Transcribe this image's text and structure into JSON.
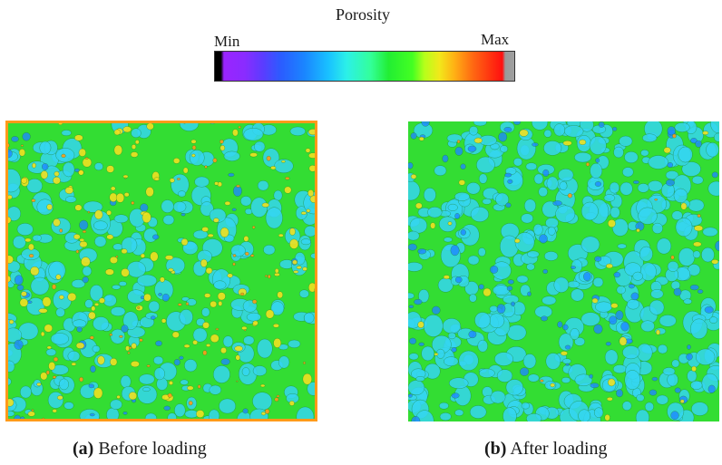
{
  "legend": {
    "title": "Porosity",
    "min_label": "Min",
    "max_label": "Max"
  },
  "panels": [
    {
      "tag": "(a)",
      "caption": "Before loading"
    },
    {
      "tag": "(b)",
      "caption": "After loading"
    }
  ],
  "colors": {
    "field_base": "#33dd33",
    "low_porosity": "#35d6f0",
    "lowest_porosity": "#1e88ff",
    "high_porosity": "#f0e020",
    "highest_porosity": "#ff9a1a"
  }
}
